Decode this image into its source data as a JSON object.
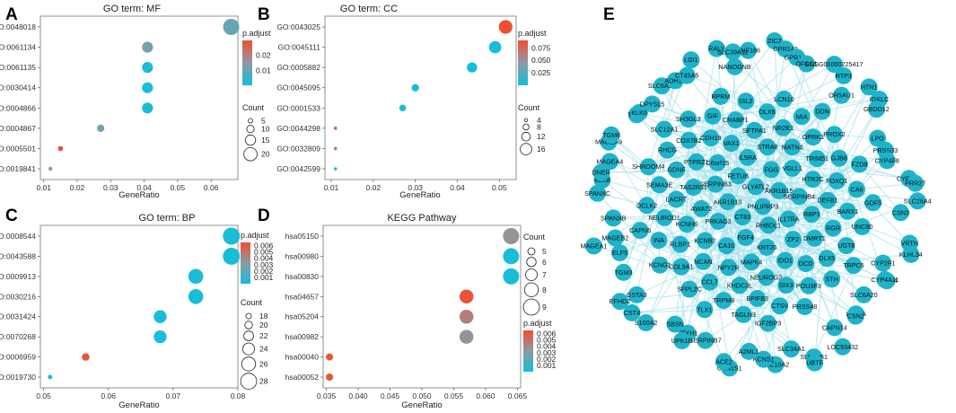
{
  "chart_data": [
    {
      "panel": "A",
      "type": "scatter",
      "title": "GO term: MF",
      "xlabel": "GeneRatio",
      "xlim": [
        0.009,
        0.068
      ],
      "xticks": [
        "0.01",
        "0.02",
        "0.03",
        "0.04",
        "0.05",
        "0.06"
      ],
      "xtick_values": [
        0.01,
        0.02,
        0.03,
        0.04,
        0.05,
        0.06
      ],
      "terms": [
        "GO:0048018",
        "GO:0061134",
        "GO:0061135",
        "GO:0030414",
        "GO:0004866",
        "GO:0004867",
        "GO:0005501",
        "GO:0019841"
      ],
      "gene_ratio": [
        0.066,
        0.041,
        0.041,
        0.041,
        0.041,
        0.027,
        0.015,
        0.012
      ],
      "count": [
        25,
        16,
        16,
        16,
        16,
        10,
        6,
        4
      ],
      "p_adjust": [
        0.01,
        0.012,
        0.001,
        0.001,
        0.001,
        0.012,
        0.03,
        0.014
      ],
      "color_title": "p.adjust",
      "color_ticks": [
        "0.02",
        "0.01"
      ],
      "color_tick_values": [
        0.02,
        0.01
      ],
      "color_range": [
        0.0,
        0.03
      ],
      "size_title": "Count",
      "size_legend": [
        "5",
        "10",
        "15",
        "20"
      ],
      "size_legend_values": [
        5,
        10,
        15,
        20
      ],
      "size_range": [
        4,
        25
      ]
    },
    {
      "panel": "B",
      "type": "scatter",
      "title": "GO term: CC",
      "xlabel": "GeneRatio",
      "xlim": [
        0.0085,
        0.054
      ],
      "xticks": [
        "0.01",
        "0.02",
        "0.03",
        "0.04",
        "0.05"
      ],
      "xtick_values": [
        0.01,
        0.02,
        0.03,
        0.04,
        0.05
      ],
      "terms": [
        "GO:0043025",
        "GO:0045111",
        "GO:0005882",
        "GO:0045095",
        "GO:0001533",
        "GO:0044298",
        "GO:0032809",
        "GO:0042599"
      ],
      "gene_ratio": [
        0.0515,
        0.049,
        0.0435,
        0.03,
        0.027,
        0.011,
        0.011,
        0.011
      ],
      "count": [
        19,
        17,
        14,
        10,
        9,
        4,
        4,
        4
      ],
      "p_adjust": [
        0.09,
        0.002,
        0.001,
        0.001,
        0.001,
        0.08,
        0.07,
        0.001
      ],
      "color_title": "p.adjust",
      "color_ticks": [
        "0.075",
        "0.050",
        "0.025"
      ],
      "color_tick_values": [
        0.075,
        0.05,
        0.025
      ],
      "color_range": [
        0.0,
        0.09
      ],
      "size_title": "Count",
      "size_legend": [
        "4",
        "8",
        "12",
        "16"
      ],
      "size_legend_values": [
        4,
        8,
        12,
        16
      ],
      "size_range": [
        4,
        20
      ]
    },
    {
      "panel": "C",
      "type": "scatter",
      "title": "GO term: BP",
      "xlabel": "GeneRatio",
      "xlim": [
        0.0495,
        0.08
      ],
      "xticks": [
        "0.05",
        "0.06",
        "0.07",
        "0.08"
      ],
      "xtick_values": [
        0.05,
        0.06,
        0.07,
        0.08
      ],
      "terms": [
        "GO:0008544",
        "GO:0043588",
        "GO:0009913",
        "GO:0030216",
        "GO:0031424",
        "GO:0070268",
        "GO:0006959",
        "GO:0019730"
      ],
      "gene_ratio": [
        0.079,
        0.079,
        0.0735,
        0.0735,
        0.068,
        0.068,
        0.0565,
        0.051
      ],
      "count": [
        29,
        29,
        27,
        27,
        25,
        25,
        20,
        17
      ],
      "p_adjust": [
        0.0002,
        0.0002,
        0.0002,
        0.0002,
        0.0002,
        0.0002,
        0.0062,
        0.0002
      ],
      "color_title": "p.adjust",
      "color_ticks": [
        "0.006",
        "0.005",
        "0.004",
        "0.003",
        "0.002",
        "0.001"
      ],
      "color_tick_values": [
        0.006,
        0.005,
        0.004,
        0.003,
        0.002,
        0.001
      ],
      "color_range": [
        0.0,
        0.0065
      ],
      "size_title": "Count",
      "size_legend": [
        "18",
        "20",
        "22",
        "24",
        "26",
        "28"
      ],
      "size_legend_values": [
        18,
        20,
        22,
        24,
        26,
        28
      ],
      "size_range": [
        17,
        29
      ]
    },
    {
      "panel": "D",
      "type": "scatter",
      "title": "KEGG Pathway",
      "xlabel": "GeneRatio",
      "xlim": [
        0.0345,
        0.0655
      ],
      "xticks": [
        "0.035",
        "0.040",
        "0.045",
        "0.050",
        "0.055",
        "0.060",
        "0.065"
      ],
      "xtick_values": [
        0.035,
        0.04,
        0.045,
        0.05,
        0.055,
        0.06,
        0.065
      ],
      "terms": [
        "hsa05150",
        "hsa00980",
        "hsa00830",
        "hsa04657",
        "hsa05204",
        "hsa00982",
        "hsa00040",
        "hsa00052"
      ],
      "gene_ratio": [
        0.064,
        0.064,
        0.064,
        0.057,
        0.057,
        0.057,
        0.0355,
        0.0355
      ],
      "count": [
        9,
        9,
        9,
        8,
        8,
        8,
        5,
        5
      ],
      "p_adjust": [
        0.0035,
        0.0002,
        0.0002,
        0.0063,
        0.0045,
        0.0035,
        0.0062,
        0.0062
      ],
      "color_title": "p.adjust",
      "color_ticks": [
        "0.006",
        "0.005",
        "0.004",
        "0.003",
        "0.002",
        "0.001"
      ],
      "color_tick_values": [
        0.006,
        0.005,
        0.004,
        0.003,
        0.002,
        0.001
      ],
      "color_range": [
        0.0,
        0.0065
      ],
      "size_title": "Count",
      "size_legend": [
        "5",
        "6",
        "7",
        "8",
        "9"
      ],
      "size_legend_values": [
        5,
        6,
        7,
        8,
        9
      ],
      "size_range": [
        5,
        9
      ]
    },
    {
      "panel": "E",
      "type": "network",
      "title": "",
      "node_color": "#1fb3c9",
      "edge_color": "#aee3ec",
      "nodes": [
        "RNF186",
        "ZIC2",
        "GPR149",
        "GPR144",
        "OFCC1",
        "ENSG00000225417",
        "RTP3",
        "OR5AU1",
        "HTN1",
        "IGKLC",
        "GBDD12",
        "LPO",
        "PRSS33",
        "CYP4F8",
        "CYP4Z2",
        "PRR27",
        "SLC26A4",
        "CSN3",
        "VRTN",
        "KLHL34",
        "CYP2F1",
        "CLDN4",
        "CYP4A11",
        "SLC6A20",
        "LALBA",
        "CSN2",
        "CAPN14",
        "LOC93432",
        "SULT1B1",
        "UBTF",
        "SLC34A1",
        "SLC10A2",
        "KCNS1",
        "A2ML1",
        "CSN1S1",
        "ACE2",
        "SERPINB7",
        "TTYH1",
        "UPK1B",
        "SBSN",
        "S100A2",
        "CST4",
        "GSTA3",
        "EFHD2",
        "TGM3",
        "ELF5",
        "MAGEA1",
        "MAGEB2",
        "SPANXB",
        "SPANXC",
        "KLK8",
        "DNER",
        "MAGEA4",
        "MAGEA9",
        "TGM6",
        "TCHH",
        "KLK6",
        "DPYSL5",
        "SLC6A15",
        "ADH1B",
        "CT45A5",
        "LGI1",
        "RALY",
        "SLC39A12",
        "NANOGNB",
        "PNLIPRP3",
        "CT83",
        "GLYATL2",
        "RHBDL1",
        "AKR1B10",
        "AKR1B15",
        "FGF4",
        "FETUB",
        "IL17RA",
        "PRKAG3",
        "FGG",
        "KRT20",
        "SERPINB3",
        "SERPINB4",
        "CA10",
        "IL5RA",
        "ZP2",
        "AWAT2",
        "VGLL1",
        "MAPK4",
        "C6orf15",
        "RBP1",
        "KCNB2",
        "STRA8",
        "IDO1",
        "TAS2R31",
        "HTR2C",
        "NPY2R",
        "VAX1",
        "DMRT1",
        "KCNH6",
        "MATN4",
        "NEUROG2",
        "PTPRZ1",
        "DEFB1",
        "NCAN",
        "SFTPA1",
        "DCD",
        "LACRT",
        "TRIM51",
        "KHDC3L",
        "CDH19",
        "RGR",
        "RLBP1",
        "NR2E1",
        "SIX3",
        "GDNF",
        "FOXQ1",
        "CCL7",
        "CRABP1",
        "DLX5",
        "NEUROD1",
        "OPRK1",
        "BPIFB3",
        "COX7B2",
        "BARX1",
        "COL9A1",
        "DLX6",
        "POU3F3",
        "SEMA3E",
        "GJB6",
        "TRPM8",
        "GIF",
        "UGT8",
        "INA",
        "MIA",
        "CTSV",
        "RHCG",
        "CA6",
        "SPPL2C",
        "ISL2",
        "STH",
        "DCLK2",
        "PROX2",
        "TAGLN3",
        "SH3GL3",
        "UNC80",
        "KCNG1",
        "LCN10",
        "PRSS48",
        "SHROOM4",
        "FZD8",
        "TLX1",
        "RPRM",
        "TRPC5",
        "CAPN6",
        "DDN",
        "IGF2BP3",
        "SLC12A1",
        "GDF5"
      ]
    }
  ]
}
